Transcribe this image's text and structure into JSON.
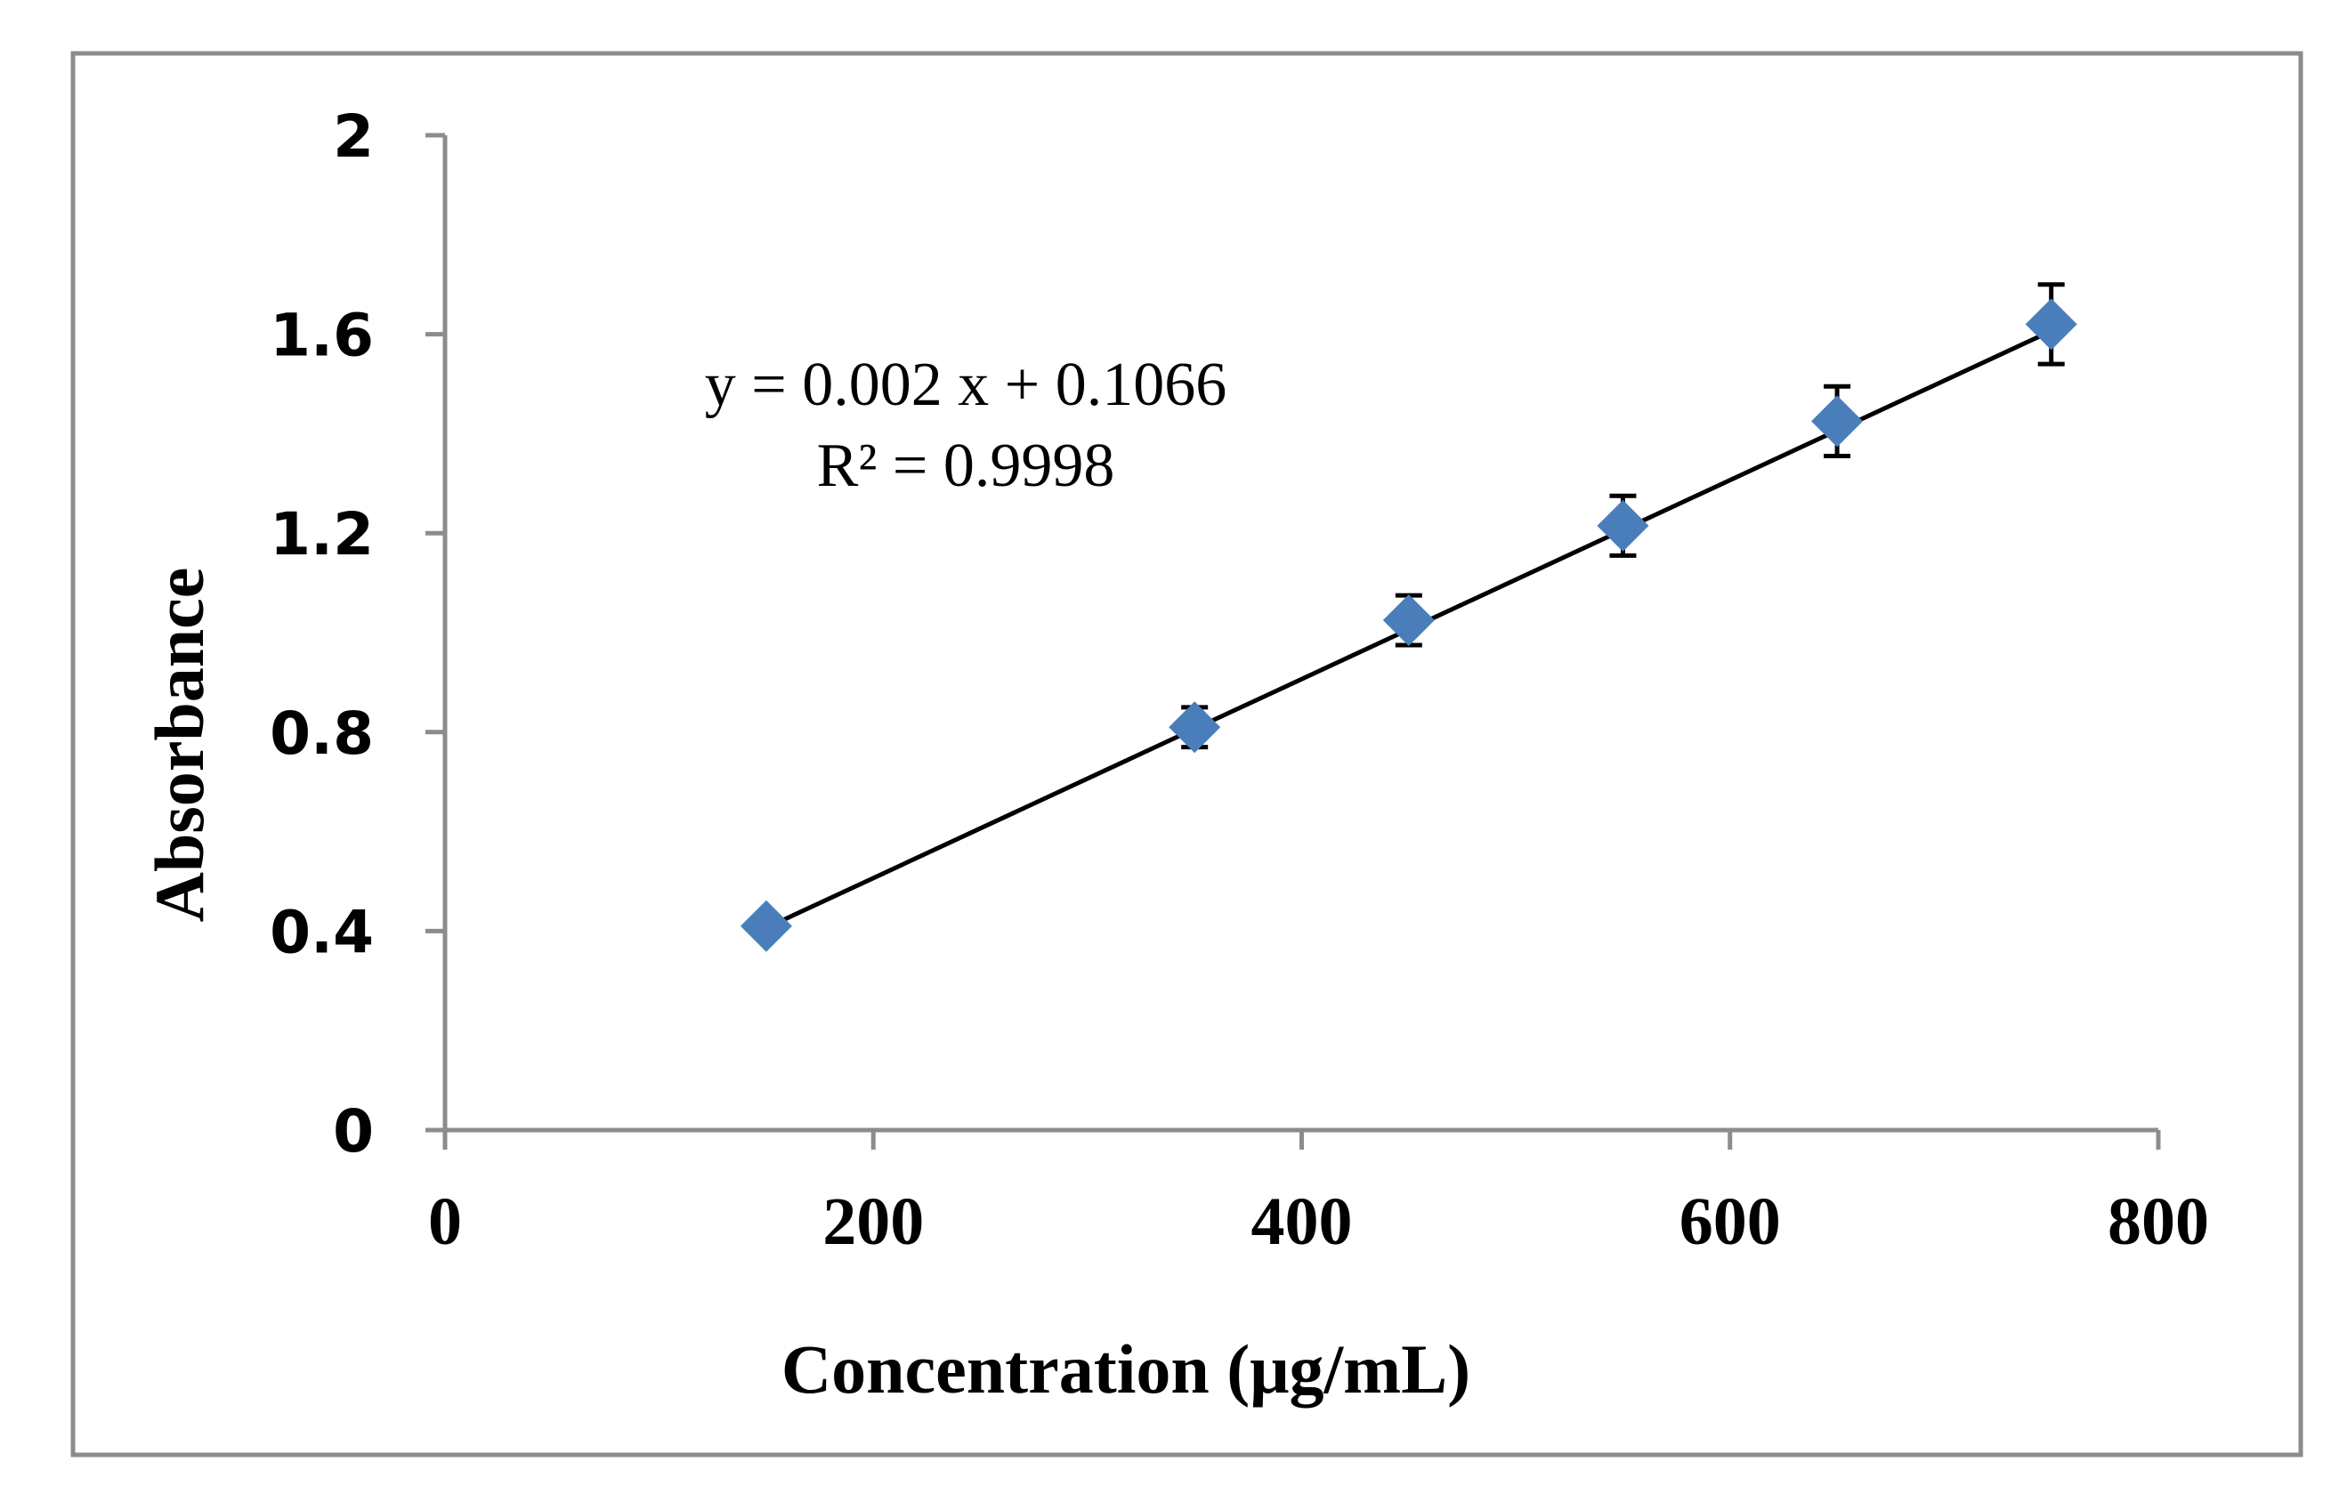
{
  "chart_data": {
    "type": "scatter",
    "title": "",
    "xlabel": "Concentration (μg/mL)",
    "ylabel": "Absorbance",
    "xlim": [
      0,
      800
    ],
    "ylim": [
      0,
      2
    ],
    "x_ticks": [
      0,
      200,
      400,
      600,
      800
    ],
    "x_tick_labels": [
      "0",
      "200",
      "400",
      "600",
      "800"
    ],
    "y_ticks": [
      0,
      0.4,
      0.8,
      1.2,
      1.6,
      2
    ],
    "y_tick_labels": [
      "0",
      "0.4",
      "0.8",
      "1.2",
      "1.6",
      "2"
    ],
    "grid": false,
    "legend": "none",
    "series": [
      {
        "name": "Absorbance",
        "marker": "diamond",
        "color": "#4A7EBB",
        "x": [
          150,
          350,
          450,
          550,
          650,
          750
        ],
        "y": [
          0.41,
          0.81,
          1.025,
          1.215,
          1.425,
          1.62
        ],
        "error": [
          0,
          0.04,
          0.05,
          0.06,
          0.07,
          0.08
        ]
      }
    ],
    "trendline": {
      "type": "linear",
      "slope": 0.002,
      "intercept": 0.1066,
      "x_range": [
        150,
        750
      ],
      "color": "#000000"
    },
    "annotations": {
      "equation": "y = 0.002 x + 0.1066",
      "r_squared": "R² = 0.9998"
    }
  }
}
